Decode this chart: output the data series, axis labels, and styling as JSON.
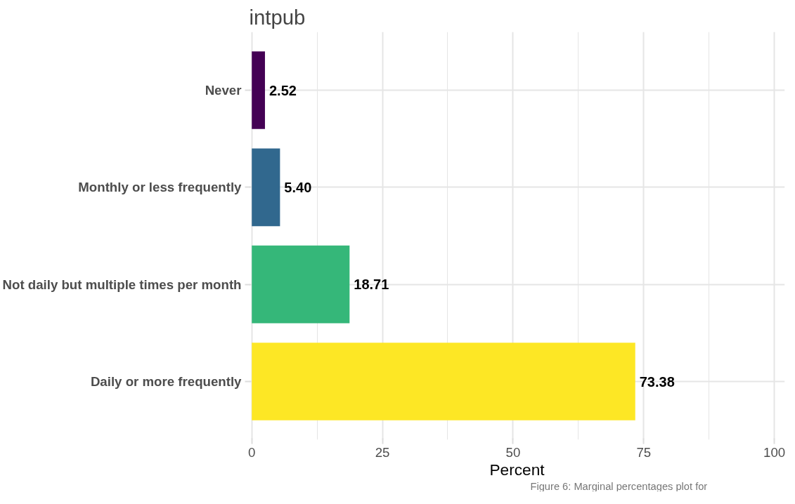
{
  "chart_data": {
    "type": "bar",
    "orientation": "horizontal",
    "title": "intpub",
    "xlabel": "Percent",
    "categories": [
      "Never",
      "Monthly or less frequently",
      "Not daily but multiple times per month",
      "Daily or more frequently"
    ],
    "values": [
      2.52,
      5.4,
      18.71,
      73.38
    ],
    "colors": [
      "#440154",
      "#31688e",
      "#35b779",
      "#fde725"
    ],
    "value_labels": [
      "2.52",
      "5.40",
      "18.71",
      "73.38"
    ],
    "xlim": [
      -0.5,
      102
    ],
    "xticks": [
      0,
      25,
      50,
      75,
      100
    ],
    "grid": true,
    "annotations": [
      "Figure 6: Marginal percentages plot for"
    ]
  }
}
